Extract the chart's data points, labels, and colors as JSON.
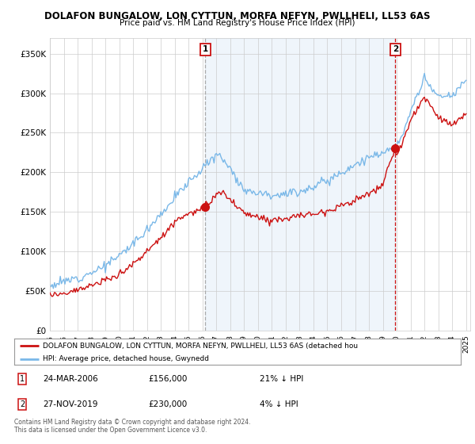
{
  "title1": "DOLAFON BUNGALOW, LON CYTTUN, MORFA NEFYN, PWLLHELI, LL53 6AS",
  "title2": "Price paid vs. HM Land Registry's House Price Index (HPI)",
  "hpi_label": "HPI: Average price, detached house, Gwynedd",
  "property_label": "DOLAFON BUNGALOW, LON CYTTUN, MORFA NEFYN, PWLLHELI, LL53 6AS (detached hou",
  "sale1_date": "24-MAR-2006",
  "sale1_price": 156000,
  "sale1_note": "21% ↓ HPI",
  "sale2_date": "27-NOV-2019",
  "sale2_price": 230000,
  "sale2_note": "4% ↓ HPI",
  "footer": "Contains HM Land Registry data © Crown copyright and database right 2024.\nThis data is licensed under the Open Government Licence v3.0.",
  "hpi_color": "#7ab8e8",
  "property_color": "#cc1111",
  "shade_color": "#ddeeff",
  "background": "#ffffff",
  "ylim": [
    0,
    370000
  ],
  "yticks": [
    0,
    50000,
    100000,
    150000,
    200000,
    250000,
    300000,
    350000
  ],
  "ytick_labels": [
    "£0",
    "£50K",
    "£100K",
    "£150K",
    "£200K",
    "£250K",
    "£300K",
    "£350K"
  ]
}
